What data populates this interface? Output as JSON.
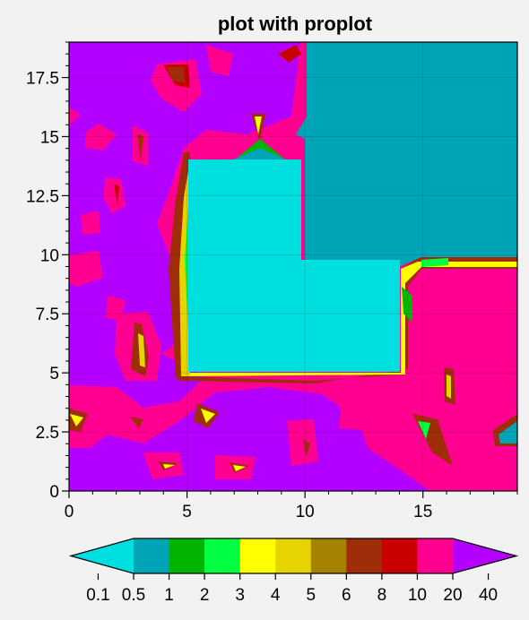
{
  "chart_data": {
    "type": "heatmap",
    "subtype": "filled-contour",
    "title": "plot with proplot",
    "xlabel": "",
    "ylabel": "",
    "xlim": [
      0,
      19
    ],
    "ylim": [
      0,
      19
    ],
    "x_ticks": [
      0,
      5,
      10,
      15
    ],
    "x_tick_labels": [
      "0",
      "5",
      "10",
      "15"
    ],
    "y_ticks": [
      0,
      2.5,
      5,
      7.5,
      10,
      12.5,
      15,
      17.5
    ],
    "y_tick_labels": [
      "0",
      "2.5",
      "5",
      "7.5",
      "10",
      "12.5",
      "15",
      "17.5"
    ],
    "grid": true,
    "colorbar": {
      "location": "bottom",
      "extend": "both",
      "levels": [
        0.1,
        0.5,
        1,
        2,
        3,
        4,
        5,
        6,
        8,
        10,
        20,
        40
      ],
      "tick_labels": [
        "0.1",
        "0.5",
        "1",
        "2",
        "3",
        "4",
        "5",
        "6",
        "8",
        "10",
        "20",
        "40"
      ],
      "colors": [
        "#00dfdf",
        "#00a4b7",
        "#00b400",
        "#00ff40",
        "#ffff00",
        "#e6d400",
        "#a58200",
        "#a02d0a",
        "#c80000",
        "#ff0090",
        "#b400ff"
      ]
    },
    "regions_description": [
      {
        "value_range": "0.1-0.5",
        "x": [
          5,
          14
        ],
        "y": [
          5,
          14
        ],
        "note": "L-shaped low region with notch at x>=10, y>=10"
      },
      {
        "value_range": "0.5-1",
        "x": [
          10,
          19
        ],
        "y": [
          10,
          19
        ]
      },
      {
        "value_range": "20-40",
        "note": "background"
      }
    ]
  }
}
